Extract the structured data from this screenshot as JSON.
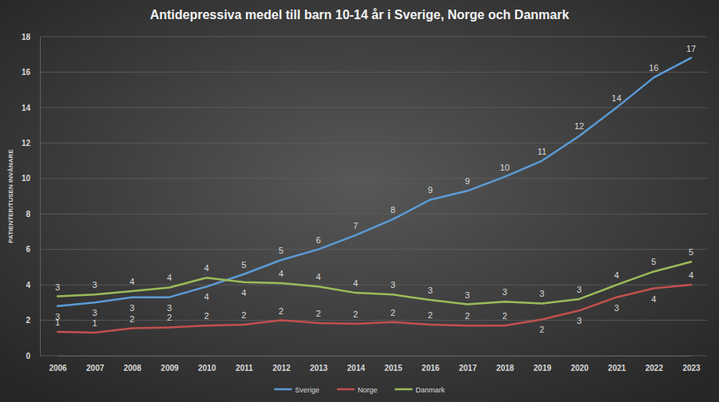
{
  "chart_data": {
    "type": "line",
    "title": "Antidepressiva medel till barn 10-14 år i Sverige, Norge och Danmark",
    "y_label": "PATIENTER/TUSEN INVÅNARE",
    "categories": [
      "2006",
      "2007",
      "2008",
      "2009",
      "2010",
      "2011",
      "2012",
      "2013",
      "2014",
      "2015",
      "2016",
      "2017",
      "2018",
      "2019",
      "2020",
      "2021",
      "2022",
      "2023"
    ],
    "series": [
      {
        "name": "Sverige",
        "color": "#5b9bd5",
        "values": [
          2.8,
          3.0,
          3.3,
          3.3,
          3.9,
          4.6,
          5.4,
          6.0,
          6.8,
          7.7,
          8.8,
          9.3,
          10.1,
          11.0,
          12.4,
          14.0,
          15.7,
          16.8
        ],
        "value_labels": [
          "3",
          "3",
          "3",
          "3",
          "4",
          "5",
          "5",
          "6",
          "7",
          "8",
          "9",
          "9",
          "10",
          "11",
          "12",
          "14",
          "16",
          "17"
        ]
      },
      {
        "name": "Norge",
        "color": "#c0504d",
        "values": [
          1.35,
          1.3,
          1.55,
          1.6,
          1.7,
          1.75,
          2.0,
          1.85,
          1.8,
          1.9,
          1.75,
          1.7,
          1.7,
          2.05,
          2.55,
          3.3,
          3.8,
          4.0
        ],
        "value_labels": [
          "1",
          "1",
          "2",
          "2",
          "2",
          "2",
          "2",
          "2",
          "2",
          "2",
          "2",
          "2",
          "2",
          "2",
          "3",
          "3",
          "4",
          "4"
        ]
      },
      {
        "name": "Danmark",
        "color": "#9bbb59",
        "values": [
          3.35,
          3.45,
          3.65,
          3.85,
          4.4,
          4.15,
          4.1,
          3.9,
          3.55,
          3.45,
          3.15,
          2.9,
          3.05,
          2.95,
          3.2,
          4.0,
          4.75,
          5.3
        ],
        "value_labels": [
          "3",
          "3",
          "4",
          "4",
          "4",
          "4",
          "4",
          "4",
          "4",
          "3",
          "3",
          "3",
          "3",
          "3",
          "3",
          "4",
          "5",
          "5"
        ]
      }
    ],
    "ylim": [
      0,
      18
    ],
    "yticks": [
      0,
      2,
      4,
      6,
      8,
      10,
      12,
      14,
      16,
      18
    ],
    "grid": true,
    "legend": "bottom",
    "data_labels": true
  }
}
